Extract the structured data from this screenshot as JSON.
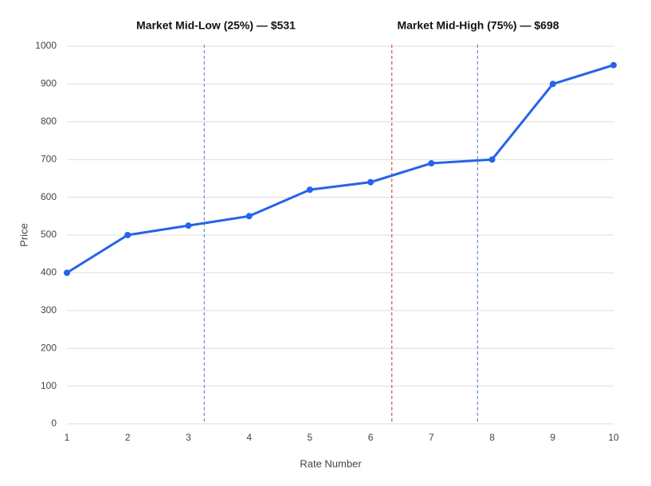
{
  "chart_data": {
    "type": "line",
    "x": [
      1,
      2,
      3,
      4,
      5,
      6,
      7,
      8,
      9,
      10
    ],
    "series": [
      {
        "name": "Price",
        "color": "#2563eb",
        "values": [
          400,
          500,
          525,
          550,
          620,
          640,
          690,
          700,
          900,
          950
        ]
      }
    ],
    "xlim": [
      1,
      10
    ],
    "xticks": [
      1,
      2,
      3,
      4,
      5,
      6,
      7,
      8,
      9,
      10
    ],
    "ylim": [
      0,
      1000
    ],
    "yticks": [
      0,
      100,
      200,
      300,
      400,
      500,
      600,
      700,
      800,
      900,
      1000
    ],
    "x_label": "Rate Number",
    "y_label": "Price",
    "grid": true,
    "annotations": [
      "Market Mid-Low (25%) — $531",
      "Market Mid-High (75%) — $698"
    ],
    "vlines": [
      {
        "x": 3.26,
        "color": "#4a78c8"
      },
      {
        "x": 6.35,
        "color": "#d62728"
      },
      {
        "x": 7.76,
        "color": "#4a78c8"
      }
    ]
  }
}
